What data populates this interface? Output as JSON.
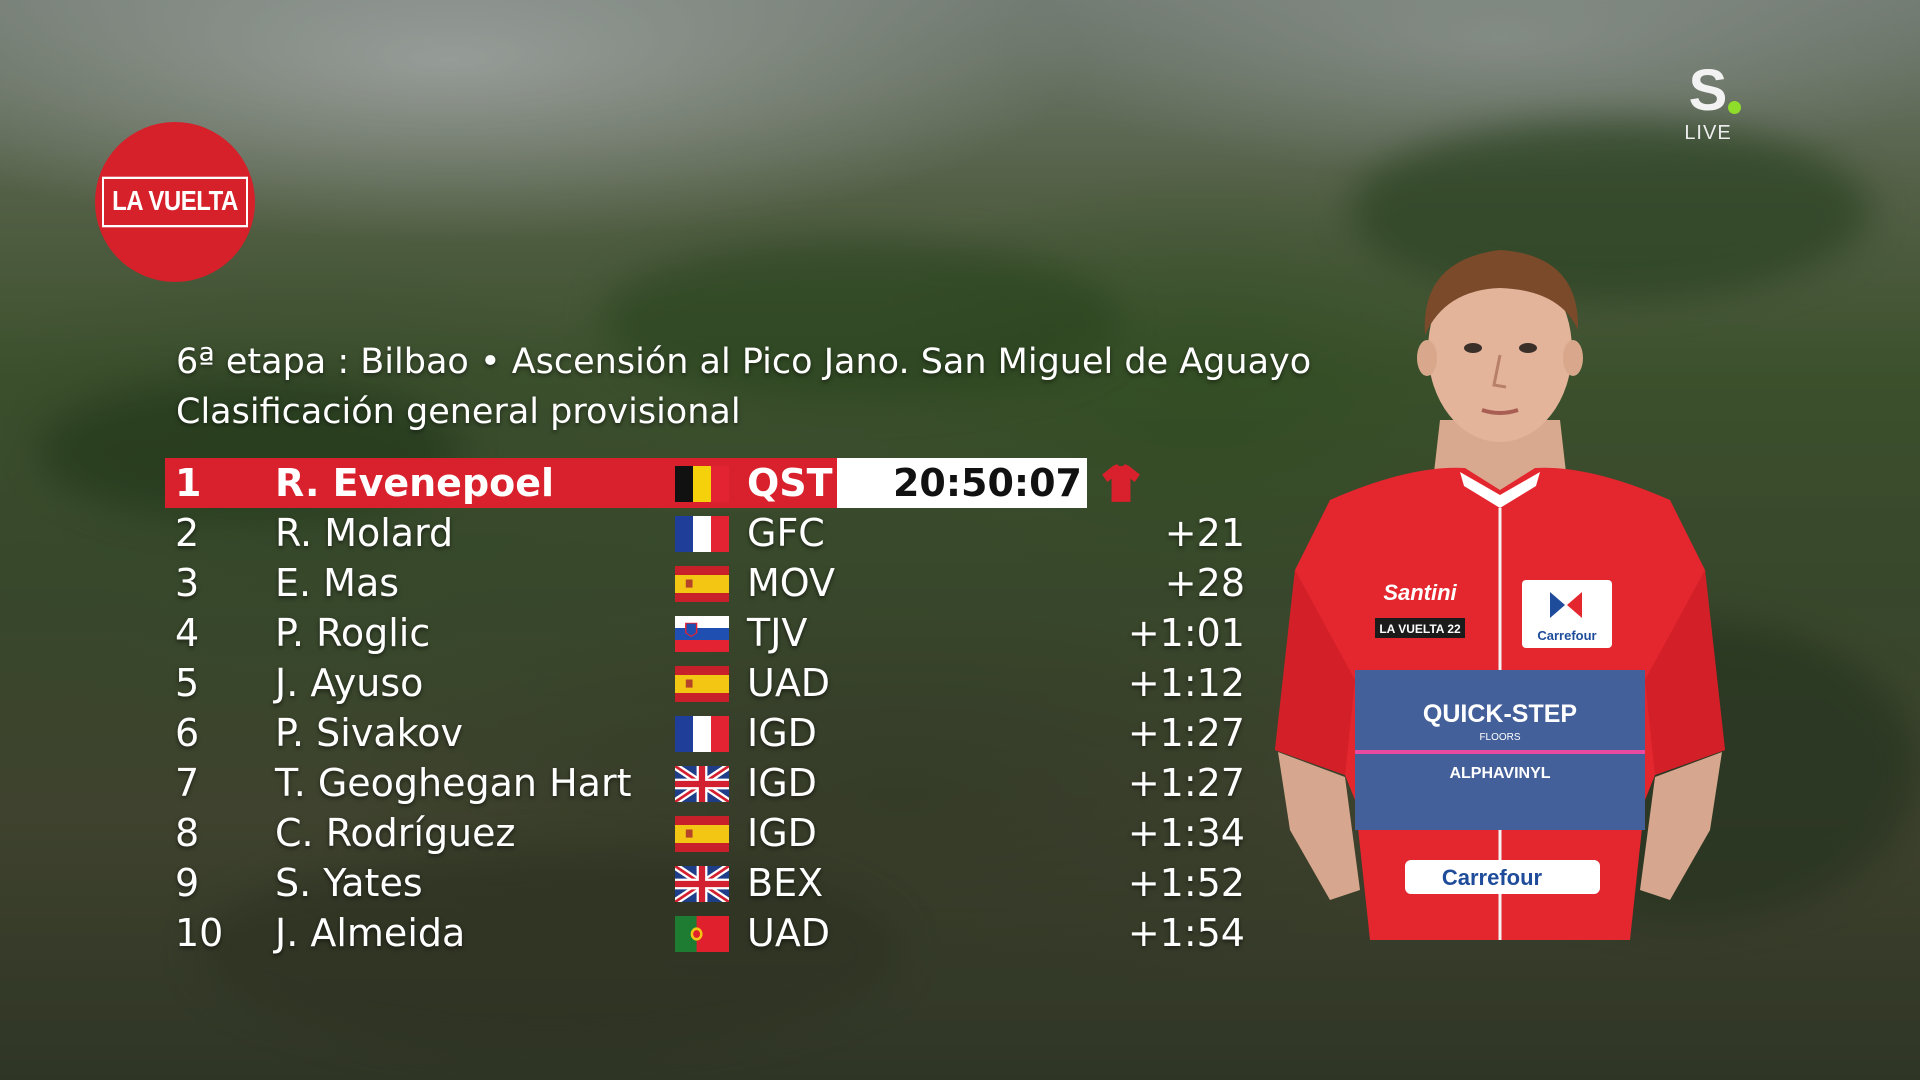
{
  "broadcast": {
    "logo_text": "LA VUELTA",
    "channel_letter": "S",
    "channel_status": "LIVE"
  },
  "header": {
    "stage": "6ª etapa : Bilbao • Ascensión al Pico Jano. San Miguel de Aguayo",
    "classification": "Clasificación general provisional"
  },
  "standings": [
    {
      "pos": "1",
      "name": "R. Evenepoel",
      "flag": "belgium",
      "team": "QST",
      "time": "20:50:07"
    },
    {
      "pos": "2",
      "name": "R. Molard",
      "flag": "france",
      "team": "GFC",
      "time": "+21"
    },
    {
      "pos": "3",
      "name": "E. Mas",
      "flag": "spain",
      "team": "MOV",
      "time": "+28"
    },
    {
      "pos": "4",
      "name": "P. Roglic",
      "flag": "slovenia",
      "team": "TJV",
      "time": "+1:01"
    },
    {
      "pos": "5",
      "name": "J. Ayuso",
      "flag": "spain",
      "team": "UAD",
      "time": "+1:12"
    },
    {
      "pos": "6",
      "name": "P. Sivakov",
      "flag": "france",
      "team": "IGD",
      "time": "+1:27"
    },
    {
      "pos": "7",
      "name": "T. Geoghegan Hart",
      "flag": "uk",
      "team": "IGD",
      "time": "+1:27"
    },
    {
      "pos": "8",
      "name": "C. Rodríguez",
      "flag": "spain",
      "team": "IGD",
      "time": "+1:34"
    },
    {
      "pos": "9",
      "name": "S. Yates",
      "flag": "uk",
      "team": "BEX",
      "time": "+1:52"
    },
    {
      "pos": "10",
      "name": "J. Almeida",
      "flag": "portugal",
      "team": "UAD",
      "time": "+1:54"
    }
  ],
  "jersey": {
    "brand": "Santini",
    "sponsor_top": "Carrefour",
    "race_badge": "LA VUELTA 22",
    "team_name": "QUICK-STEP",
    "team_sub": "FLOORS",
    "partner": "ALPHAVINYL",
    "sponsor_bottom": "Carrefour"
  },
  "colors": {
    "leader_red": "#d8212c",
    "logo_red": "#d6202a",
    "live_dot": "#8fdc2a"
  }
}
